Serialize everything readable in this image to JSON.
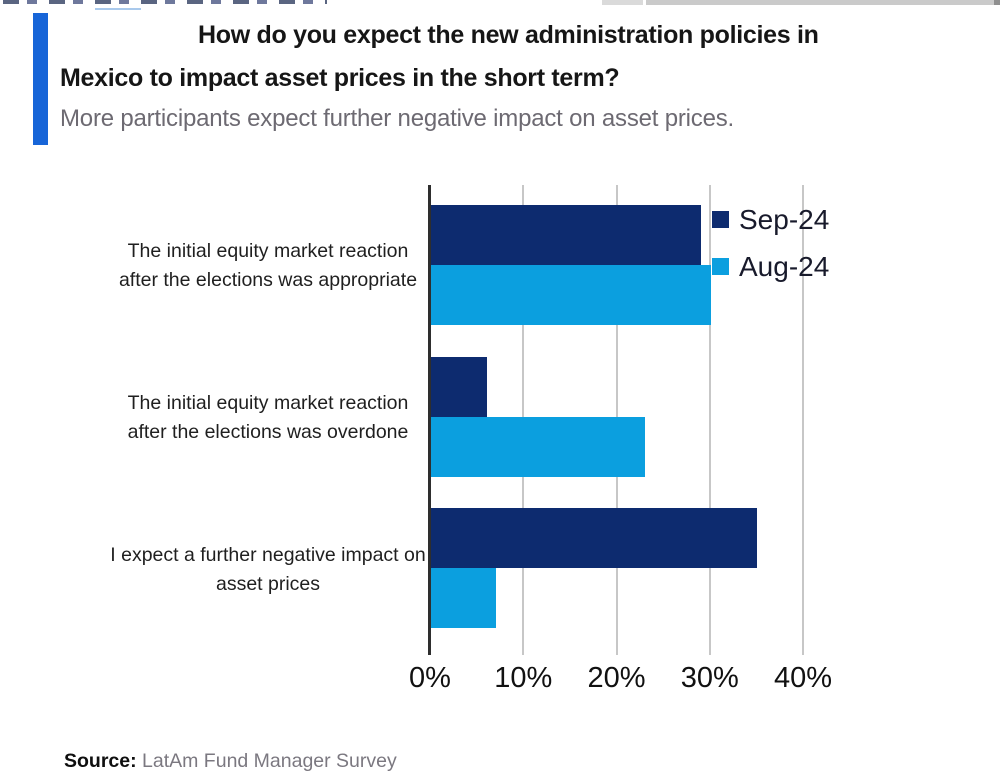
{
  "header": {
    "title_line1": "How do you expect the new administration policies in",
    "title_line2": "Mexico to impact asset prices in the short term?",
    "subtitle": "More participants expect further negative impact on asset prices."
  },
  "colors": {
    "accent_bar": "#1765d8",
    "sep24_navy": "#0d2b6f",
    "aug24_blue": "#0b9fdf",
    "gridline": "#c7c7c7",
    "axis": "#2e2e2e"
  },
  "chart_data": {
    "type": "bar",
    "orientation": "horizontal",
    "title": "How do you expect the new administration policies in Mexico to impact asset prices in the short term?",
    "subtitle": "More participants expect further negative impact on asset prices.",
    "categories": [
      "The initial equity market reaction after the elections was appropriate",
      "The initial equity market reaction after the elections was overdone",
      "I expect a further negative impact on asset prices"
    ],
    "category_lines": [
      [
        "The initial equity market reaction",
        "after the elections was appropriate"
      ],
      [
        "The initial equity market reaction",
        "after the elections was overdone"
      ],
      [
        "I expect a further negative impact on",
        "asset prices"
      ]
    ],
    "series": [
      {
        "name": "Sep-24",
        "color": "#0d2b6f",
        "values": [
          29,
          6,
          35
        ]
      },
      {
        "name": "Aug-24",
        "color": "#0b9fdf",
        "values": [
          30,
          23,
          7
        ]
      }
    ],
    "x_ticks": [
      {
        "label": "0%",
        "value": 0
      },
      {
        "label": "10%",
        "value": 10
      },
      {
        "label": "20%",
        "value": 20
      },
      {
        "label": "30%",
        "value": 30
      },
      {
        "label": "40%",
        "value": 40
      }
    ],
    "xlim": [
      0,
      40
    ],
    "grid": true,
    "legend_position": "top-right"
  },
  "source": {
    "label": "Source:",
    "text": "LatAm Fund Manager Survey"
  }
}
